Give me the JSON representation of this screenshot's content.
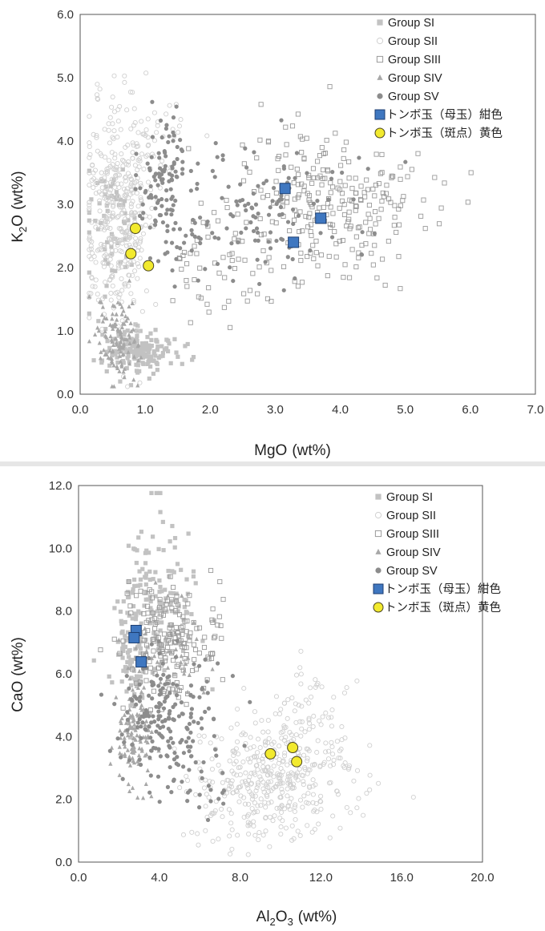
{
  "colors": {
    "group_si": "#c2c2c2",
    "group_sii": "#d0d0d0",
    "group_siii": "#9a9a9a",
    "group_siv": "#a8a8a8",
    "group_sv": "#8c8c8c",
    "blue_marker": "#3f77c0",
    "yellow_marker": "#f2ea2e"
  },
  "chart_data": [
    {
      "type": "scatter",
      "title": "",
      "xlabel_main": "MgO",
      "xlabel_unit": "(wt%)",
      "ylabel_main": "K",
      "ylabel_sub": "2",
      "ylabel_tail": "O",
      "ylabel_unit": "(wt%)",
      "xlim": [
        0,
        7
      ],
      "ylim": [
        0,
        6
      ],
      "x_ticks": [
        "0.0",
        "1.0",
        "2.0",
        "3.0",
        "4.0",
        "5.0",
        "6.0",
        "7.0"
      ],
      "y_ticks": [
        "0.0",
        "1.0",
        "2.0",
        "3.0",
        "4.0",
        "5.0",
        "6.0"
      ],
      "legend_position": "top-right",
      "legend": [
        "Group SI",
        "Group SII",
        "Group SIII",
        "Group SIV",
        "Group SV",
        "トンボ玉（母玉）紺色",
        "トンボ玉（斑点）黄色"
      ],
      "group_clouds": [
        {
          "name": "Group SI",
          "marker": "square-filled",
          "clusters": [
            {
              "cx": 0.95,
              "cy": 0.7,
              "sx": 0.28,
              "sy": 0.18,
              "n": 160
            },
            {
              "cx": 0.45,
              "cy": 2.7,
              "sx": 0.2,
              "sy": 0.5,
              "n": 60
            }
          ]
        },
        {
          "name": "Group SII",
          "marker": "circle-open",
          "clusters": [
            {
              "cx": 0.55,
              "cy": 2.9,
              "sx": 0.25,
              "sy": 0.85,
              "n": 380
            },
            {
              "cx": 1.15,
              "cy": 4.1,
              "sx": 0.25,
              "sy": 0.35,
              "n": 40
            }
          ]
        },
        {
          "name": "Group SIII",
          "marker": "square-open",
          "clusters": [
            {
              "cx": 3.8,
              "cy": 2.95,
              "sx": 0.75,
              "sy": 0.65,
              "n": 260
            },
            {
              "cx": 2.1,
              "cy": 2.0,
              "sx": 0.45,
              "sy": 0.5,
              "n": 50
            }
          ]
        },
        {
          "name": "Group SIV",
          "marker": "triangle-filled",
          "clusters": [
            {
              "cx": 0.6,
              "cy": 0.85,
              "sx": 0.17,
              "sy": 0.3,
              "n": 120
            }
          ]
        },
        {
          "name": "Group SV",
          "marker": "circle-filled",
          "clusters": [
            {
              "cx": 1.3,
              "cy": 3.3,
              "sx": 0.2,
              "sy": 0.55,
              "n": 110
            },
            {
              "cx": 2.35,
              "cy": 2.9,
              "sx": 0.55,
              "sy": 0.45,
              "n": 90
            },
            {
              "cx": 3.4,
              "cy": 3.0,
              "sx": 0.6,
              "sy": 0.6,
              "n": 40
            }
          ]
        }
      ],
      "highlights": [
        {
          "name": "トンボ玉（母玉）紺色",
          "marker": "square-blue",
          "points": [
            [
              3.15,
              3.25
            ],
            [
              3.28,
              2.4
            ],
            [
              3.7,
              2.78
            ]
          ]
        },
        {
          "name": "トンボ玉（斑点）黄色",
          "marker": "circle-yellow",
          "points": [
            [
              0.85,
              2.62
            ],
            [
              0.78,
              2.22
            ],
            [
              1.05,
              2.03
            ]
          ]
        }
      ]
    },
    {
      "type": "scatter",
      "title": "",
      "xlabel_main": "Al",
      "xlabel_sub": "2",
      "xlabel_tail": "O",
      "xlabel_sub2": "3",
      "xlabel_unit": "(wt%)",
      "ylabel_main": "CaO",
      "ylabel_unit": "(wt%)",
      "xlim": [
        0,
        20
      ],
      "ylim": [
        0,
        12
      ],
      "x_ticks": [
        "0.0",
        "4.0",
        "8.0",
        "12.0",
        "16.0",
        "20.0"
      ],
      "y_ticks": [
        "0.0",
        "2.0",
        "4.0",
        "6.0",
        "8.0",
        "10.0",
        "12.0"
      ],
      "legend_position": "top-right",
      "legend": [
        "Group SI",
        "Group SII",
        "Group SIII",
        "Group SIV",
        "Group SV",
        "トンボ玉（母玉）紺色",
        "トンボ玉（斑点）黄色"
      ],
      "group_clouds": [
        {
          "name": "Group SI",
          "marker": "square-filled",
          "clusters": [
            {
              "cx": 3.8,
              "cy": 8.2,
              "sx": 1.1,
              "sy": 1.3,
              "n": 170
            },
            {
              "cx": 2.4,
              "cy": 6.5,
              "sx": 0.25,
              "sy": 0.8,
              "n": 50
            }
          ]
        },
        {
          "name": "Group SII",
          "marker": "circle-open",
          "clusters": [
            {
              "cx": 9.5,
              "cy": 2.6,
              "sx": 2.0,
              "sy": 0.9,
              "n": 420
            },
            {
              "cx": 11.5,
              "cy": 4.5,
              "sx": 1.2,
              "sy": 1.0,
              "n": 60
            }
          ]
        },
        {
          "name": "Group SIII",
          "marker": "square-open",
          "clusters": [
            {
              "cx": 4.6,
              "cy": 7.1,
              "sx": 1.2,
              "sy": 0.9,
              "n": 180
            }
          ]
        },
        {
          "name": "Group SIV",
          "marker": "triangle-filled",
          "clusters": [
            {
              "cx": 2.8,
              "cy": 4.0,
              "sx": 0.5,
              "sy": 0.8,
              "n": 120
            },
            {
              "cx": 4.5,
              "cy": 6.8,
              "sx": 1.0,
              "sy": 0.9,
              "n": 40
            }
          ]
        },
        {
          "name": "Group SV",
          "marker": "circle-filled",
          "clusters": [
            {
              "cx": 4.3,
              "cy": 4.7,
              "sx": 1.3,
              "sy": 1.0,
              "n": 180
            },
            {
              "cx": 5.8,
              "cy": 2.6,
              "sx": 0.8,
              "sy": 0.6,
              "n": 30
            }
          ]
        }
      ],
      "highlights": [
        {
          "name": "トンボ玉（母玉）紺色",
          "marker": "square-blue",
          "points": [
            [
              2.85,
              7.38
            ],
            [
              2.75,
              7.15
            ],
            [
              3.1,
              6.38
            ]
          ]
        },
        {
          "name": "トンボ玉（斑点）黄色",
          "marker": "circle-yellow",
          "points": [
            [
              9.5,
              3.45
            ],
            [
              10.6,
              3.65
            ],
            [
              10.8,
              3.2
            ]
          ]
        }
      ]
    }
  ]
}
